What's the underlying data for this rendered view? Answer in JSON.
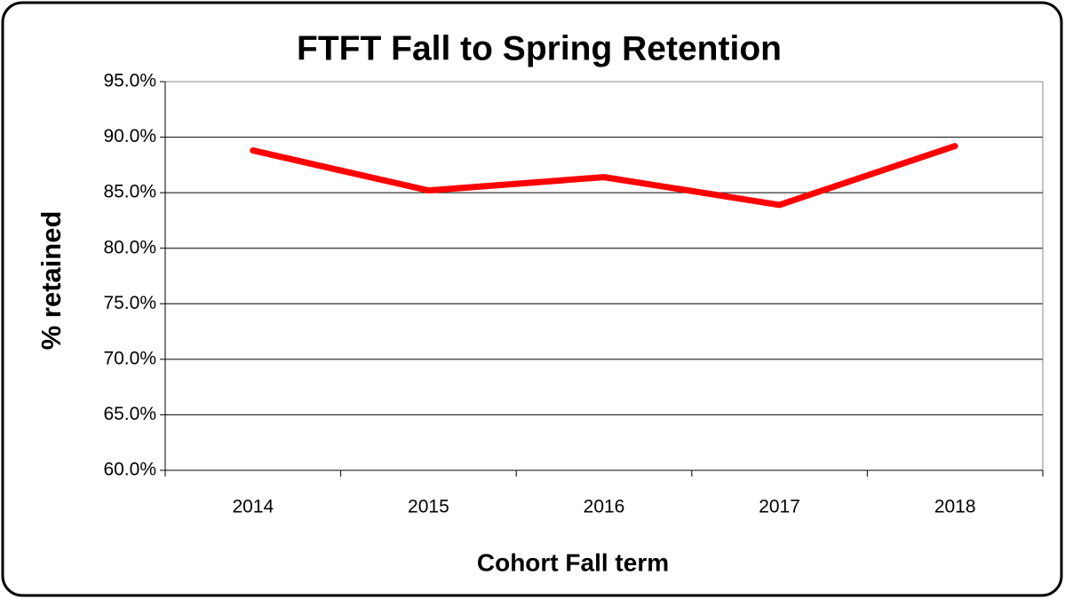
{
  "chart_data": {
    "type": "line",
    "title": "FTFT Fall to Spring Retention",
    "xlabel": "Cohort Fall term",
    "ylabel": "% retained",
    "categories": [
      "2014",
      "2015",
      "2016",
      "2017",
      "2018"
    ],
    "series": [
      {
        "name": "% retained",
        "color": "#ff0000",
        "values": [
          88.8,
          85.2,
          86.4,
          83.9,
          89.2
        ]
      }
    ],
    "ylim": [
      60,
      95
    ],
    "yticks": [
      {
        "value": 60,
        "label": "60.0%"
      },
      {
        "value": 65,
        "label": "65.0%"
      },
      {
        "value": 70,
        "label": "70.0%"
      },
      {
        "value": 75,
        "label": "75.0%"
      },
      {
        "value": 80,
        "label": "80.0%"
      },
      {
        "value": 85,
        "label": "85.0%"
      },
      {
        "value": 90,
        "label": "90.0%"
      },
      {
        "value": 95,
        "label": "95.0%"
      }
    ],
    "grid": true
  }
}
